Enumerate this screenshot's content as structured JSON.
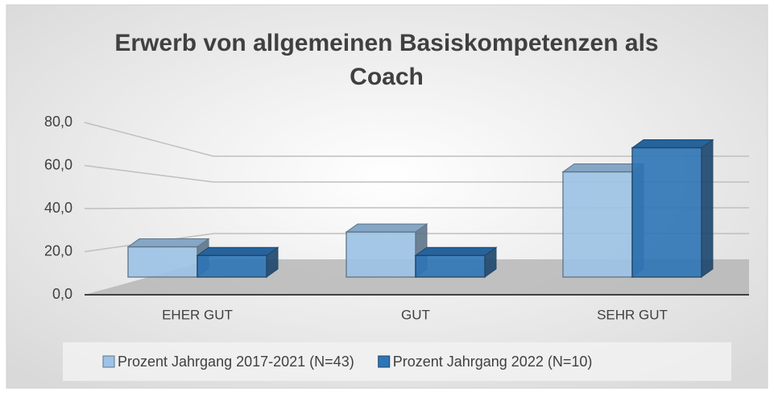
{
  "chart_data": {
    "type": "bar3d",
    "title": "Erwerb von allgemeinen Basiskompetenzen als Coach",
    "categories": [
      "EHER GUT",
      "GUT",
      "SEHR GUT"
    ],
    "series": [
      {
        "name": "Prozent Jahrgang 2017-2021 (N=43)",
        "color": "#9dc3e6",
        "values": [
          14.0,
          20.9,
          48.8
        ]
      },
      {
        "name": "Prozent Jahrgang 2022 (N=10)",
        "color": "#2e75b6",
        "values": [
          10.0,
          10.0,
          60.0
        ]
      }
    ],
    "ylim": [
      0,
      80
    ],
    "yticks": [
      {
        "value": 0,
        "label": "0,0"
      },
      {
        "value": 20,
        "label": "20,0"
      },
      {
        "value": 40,
        "label": "40,0"
      },
      {
        "value": 60,
        "label": "60,0"
      },
      {
        "value": 80,
        "label": "80,0"
      }
    ],
    "grid": true,
    "legend": "bottom"
  }
}
